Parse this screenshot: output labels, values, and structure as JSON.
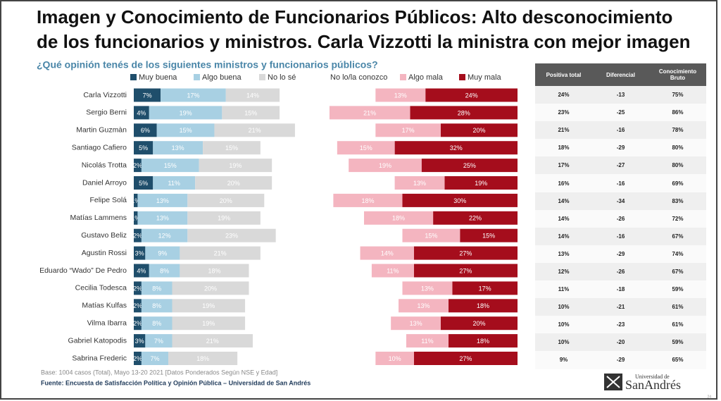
{
  "chart_data": {
    "type": "bar",
    "title": [
      "Imagen y Conocimiento de Funcionarios Públicos: Alto desconocimiento",
      "de los funcionarios y ministros. Carla Vizzotti la ministra con mejor imagen"
    ],
    "subtitle": "¿Qué opinión tenés de los siguientes ministros y funcionarios públicos?",
    "categories": [
      "Carla Vizzotti",
      "Sergio Berni",
      "Martin Guzmàn",
      "Santiago Cafiero",
      "Nicolás Trotta",
      "Daniel Arroyo",
      "Felipe Solá",
      "Matías Lammens",
      "Gustavo Beliz",
      "Agustin Rossi",
      "Eduardo “Wado” De Pedro",
      "Cecilia Todesca",
      "Matías Kulfas",
      "Vilma Ibarra",
      "Gabriel Katopodis",
      "Sabrina Frederic"
    ],
    "series": [
      {
        "name": "Muy buena",
        "color": "#1f4e6b",
        "values": [
          7,
          4,
          6,
          5,
          2,
          5,
          1,
          1,
          2,
          3,
          4,
          2,
          2,
          2,
          3,
          2
        ],
        "value_labels": [
          "7%",
          "4%",
          "6%",
          "5%",
          "2%",
          "5%",
          "1%",
          "1%",
          "2%",
          "3%",
          "4%",
          "2%",
          "2%",
          "2%",
          "3%",
          "2%"
        ]
      },
      {
        "name": "Algo buena",
        "color": "#a8d0e3",
        "values": [
          17,
          19,
          15,
          13,
          15,
          11,
          13,
          13,
          12,
          9,
          8,
          8,
          8,
          8,
          7,
          7
        ],
        "value_labels": [
          "17%",
          "19%",
          "15%",
          "13%",
          "15%",
          "11%",
          "13%",
          "13%",
          "12%",
          "9%",
          "8%",
          "8%",
          "8%",
          "8%",
          "7%",
          "7%"
        ]
      },
      {
        "name": "No lo sé",
        "color": "#d9d9d9",
        "values": [
          14,
          15,
          21,
          15,
          19,
          20,
          20,
          19,
          23,
          21,
          18,
          20,
          19,
          19,
          21,
          18
        ],
        "value_labels": [
          "14%",
          "15%",
          "21%",
          "15%",
          "19%",
          "20%",
          "20%",
          "19%",
          "23%",
          "21%",
          "18%",
          "20%",
          "19%",
          "19%",
          "21%",
          "18%"
        ]
      },
      {
        "name": "No lo/la conozco",
        "color": "#ffffff",
        "values": [
          25,
          13,
          21,
          20,
          20,
          32,
          18,
          27,
          33,
          26,
          32,
          40,
          40,
          38,
          40,
          36
        ]
      },
      {
        "name": "Algo mala",
        "color": "#f4b5c0",
        "values": [
          13,
          21,
          17,
          15,
          19,
          13,
          18,
          18,
          15,
          14,
          11,
          13,
          13,
          13,
          11,
          10
        ],
        "value_labels": [
          "13%",
          "21%",
          "17%",
          "15%",
          "19%",
          "13%",
          "18%",
          "18%",
          "15%",
          "14%",
          "11%",
          "13%",
          "13%",
          "13%",
          "11%",
          "10%"
        ]
      },
      {
        "name": "Muy mala",
        "color": "#a50d1c",
        "values": [
          24,
          28,
          20,
          32,
          25,
          19,
          30,
          22,
          15,
          27,
          27,
          17,
          18,
          20,
          18,
          27
        ],
        "value_labels": [
          "24%",
          "28%",
          "20%",
          "32%",
          "25%",
          "19%",
          "30%",
          "22%",
          "15%",
          "27%",
          "27%",
          "17%",
          "18%",
          "20%",
          "18%",
          "27%"
        ]
      }
    ],
    "table": {
      "columns": [
        "Positiva total",
        "Diferencial",
        "Conocimiento Bruto"
      ],
      "rows": [
        [
          "24%",
          "-13",
          "75%"
        ],
        [
          "23%",
          "-25",
          "86%"
        ],
        [
          "21%",
          "-16",
          "78%"
        ],
        [
          "18%",
          "-29",
          "80%"
        ],
        [
          "17%",
          "-27",
          "80%"
        ],
        [
          "16%",
          "-16",
          "69%"
        ],
        [
          "14%",
          "-34",
          "83%"
        ],
        [
          "14%",
          "-26",
          "72%"
        ],
        [
          "14%",
          "-16",
          "67%"
        ],
        [
          "13%",
          "-29",
          "74%"
        ],
        [
          "12%",
          "-26",
          "67%"
        ],
        [
          "11%",
          "-18",
          "59%"
        ],
        [
          "10%",
          "-21",
          "61%"
        ],
        [
          "10%",
          "-23",
          "61%"
        ],
        [
          "10%",
          "-20",
          "59%"
        ],
        [
          "9%",
          "-29",
          "65%"
        ]
      ]
    },
    "note": "Base: 1004 casos (Total), Mayo 13-20 2021 [Datos Ponderados Según NSE y Edad]",
    "source": "Fuente: Encuesta de Satisfacción Política y Opinión Pública – Universidad de San Andrés",
    "logo": [
      "Universidad de",
      "SanAndrés"
    ],
    "page": "24"
  }
}
